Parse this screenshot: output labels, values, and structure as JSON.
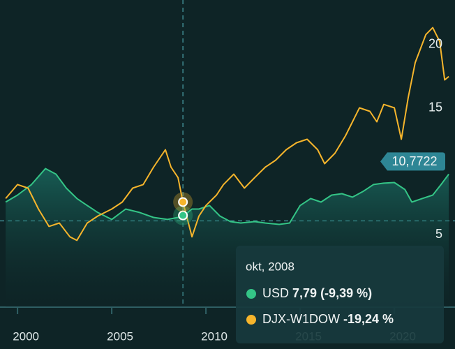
{
  "chart_data": {
    "type": "line",
    "xlim": [
      1999.07,
      2023.22
    ],
    "ylim": [
      -0.7,
      23.5
    ],
    "xticks": [
      2000,
      2005,
      2010,
      2015,
      2020
    ],
    "yticks": [
      5,
      15,
      20
    ],
    "series": [
      {
        "name": "USD",
        "color": "#34c486",
        "x": [
          1999.37,
          2000.0,
          2000.74,
          2001.48,
          2002.04,
          2002.59,
          2003.15,
          2003.7,
          2004.26,
          2005.0,
          2005.74,
          2006.48,
          2007.22,
          2007.96,
          2008.52,
          2008.89,
          2009.26,
          2009.63,
          2010.19,
          2010.74,
          2011.3,
          2011.85,
          2012.59,
          2013.15,
          2013.89,
          2014.44,
          2015.0,
          2015.56,
          2016.11,
          2016.67,
          2017.22,
          2017.78,
          2018.33,
          2018.89,
          2019.44,
          2020.0,
          2020.56,
          2020.93,
          2021.48,
          2022.04,
          2022.48,
          2022.89
        ],
        "values": [
          7.58,
          8.13,
          8.96,
          10.22,
          9.78,
          8.68,
          7.86,
          7.31,
          6.76,
          6.21,
          7.03,
          6.76,
          6.37,
          6.21,
          6.37,
          6.59,
          7.03,
          7.03,
          7.31,
          6.48,
          6.04,
          5.93,
          6.04,
          5.93,
          5.82,
          5.93,
          7.31,
          7.86,
          7.58,
          8.13,
          8.24,
          7.97,
          8.41,
          8.96,
          9.07,
          9.12,
          8.57,
          7.58,
          7.86,
          8.13,
          8.96,
          9.78
        ]
      },
      {
        "name": "DJX-W1DOW",
        "color": "#f6b52c",
        "x": [
          1999.37,
          2000.0,
          2000.56,
          2001.11,
          2001.67,
          2002.22,
          2002.78,
          2003.15,
          2003.7,
          2004.26,
          2005.0,
          2005.56,
          2006.11,
          2006.67,
          2007.22,
          2007.85,
          2008.15,
          2008.52,
          2008.78,
          2009.07,
          2009.26,
          2009.63,
          2010.0,
          2010.56,
          2010.93,
          2011.48,
          2012.04,
          2012.59,
          2013.15,
          2013.7,
          2014.26,
          2014.81,
          2015.37,
          2015.93,
          2016.3,
          2016.85,
          2017.41,
          2017.78,
          2018.15,
          2018.7,
          2019.07,
          2019.44,
          2020.0,
          2020.37,
          2020.74,
          2021.11,
          2021.67,
          2022.04,
          2022.41,
          2022.67,
          2022.89
        ],
        "values": [
          7.86,
          8.96,
          8.68,
          7.03,
          5.66,
          5.93,
          4.84,
          4.56,
          5.93,
          6.48,
          7.03,
          7.58,
          8.68,
          8.96,
          10.33,
          11.7,
          10.33,
          9.51,
          7.58,
          5.93,
          4.84,
          6.48,
          7.31,
          8.13,
          8.96,
          9.78,
          8.68,
          9.51,
          10.33,
          10.88,
          11.7,
          12.25,
          12.53,
          11.7,
          10.6,
          11.43,
          12.8,
          13.9,
          15.0,
          14.73,
          13.9,
          15.27,
          15.0,
          12.53,
          15.82,
          18.57,
          20.77,
          21.32,
          20.22,
          17.2,
          17.47
        ]
      }
    ],
    "reference_line": 6.1,
    "crosshair_x": 2008.78,
    "last_value": {
      "value": 10.7722,
      "label": "10,7722"
    },
    "tooltip": {
      "title": "okt, 2008",
      "items": [
        "7,79 (-9,39 %)",
        "-19,24 %"
      ]
    }
  }
}
